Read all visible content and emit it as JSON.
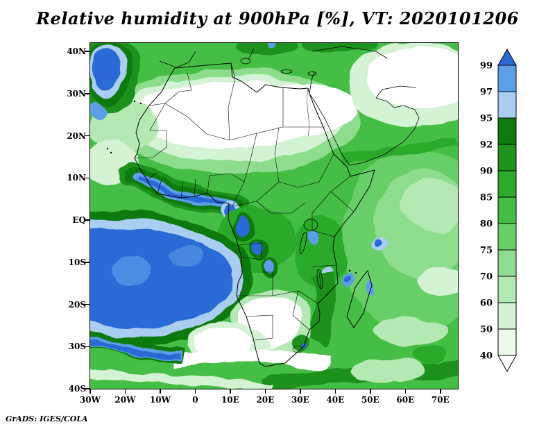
{
  "title": "Relative humidity at 900hPa [%], VT: 2020101206",
  "attribution": "GrADS: IGES/COLA",
  "chart_data": {
    "type": "heatmap",
    "title": "Relative humidity at 900hPa [%], VT: 2020101206",
    "variable": "Relative humidity",
    "level_hPa": 900,
    "units": "%",
    "valid_time": "2020101206",
    "projection": "lat-lon",
    "region": "Africa and surrounding oceans",
    "lon_range_deg": [
      -30,
      75
    ],
    "lat_range_deg": [
      -40,
      42
    ],
    "grid": false,
    "legend_position": "right",
    "x_ticks": [
      {
        "label": "30W",
        "lon": -30
      },
      {
        "label": "20W",
        "lon": -20
      },
      {
        "label": "10W",
        "lon": -10
      },
      {
        "label": "0",
        "lon": 0
      },
      {
        "label": "10E",
        "lon": 10
      },
      {
        "label": "20E",
        "lon": 20
      },
      {
        "label": "30E",
        "lon": 30
      },
      {
        "label": "40E",
        "lon": 40
      },
      {
        "label": "50E",
        "lon": 50
      },
      {
        "label": "60E",
        "lon": 60
      },
      {
        "label": "70E",
        "lon": 70
      }
    ],
    "y_ticks": [
      {
        "label": "40N",
        "lat": 40
      },
      {
        "label": "30N",
        "lat": 30
      },
      {
        "label": "20N",
        "lat": 20
      },
      {
        "label": "10N",
        "lat": 10
      },
      {
        "label": "EQ",
        "lat": 0
      },
      {
        "label": "10S",
        "lat": -10
      },
      {
        "label": "20S",
        "lat": -20
      },
      {
        "label": "30S",
        "lat": -30
      },
      {
        "label": "40S",
        "lat": -40
      }
    ],
    "colorbar": {
      "levels": [
        99,
        97,
        95,
        92,
        90,
        85,
        80,
        75,
        70,
        60,
        50,
        40
      ],
      "segments": [
        {
          "range": ">99",
          "color": "#2B6BD6"
        },
        {
          "range": "97-99",
          "color": "#5C9FE8"
        },
        {
          "range": "95-97",
          "color": "#A9CEF2"
        },
        {
          "range": "92-95",
          "color": "#0F7A0F"
        },
        {
          "range": "90-92",
          "color": "#1D921D"
        },
        {
          "range": "85-90",
          "color": "#2BAA2B"
        },
        {
          "range": "80-85",
          "color": "#45BE45"
        },
        {
          "range": "75-80",
          "color": "#68CF68"
        },
        {
          "range": "70-75",
          "color": "#8EDD8E"
        },
        {
          "range": "60-70",
          "color": "#B4E9B4"
        },
        {
          "range": "50-60",
          "color": "#D4F2D4"
        },
        {
          "range": "40-50",
          "color": "#EBFAEB"
        },
        {
          "range": "<40",
          "color": "#FFFFFF"
        }
      ]
    },
    "features": [
      "Very high RH (>95%, blue) over the south-eastern tropical Atlantic off Angola/Namibia",
      "Blue RH maxima along the Gulf of Guinea coast, over the Congo basin and near Lake Victoria",
      "Blue patch over the north-east Atlantic near 40N 27W",
      "Dry air (<50%, white) across the Sahara and the Arabian Peninsula",
      "Dry tongue (<50%) over Namibia/Kalahari extending offshore to the south-west",
      "Broad 75-90% greens over the Indian Ocean with drier streaks between 25S and 40S",
      "Alternating moist/dry swirls along the Southern Ocean storm track near 35-40S"
    ]
  }
}
